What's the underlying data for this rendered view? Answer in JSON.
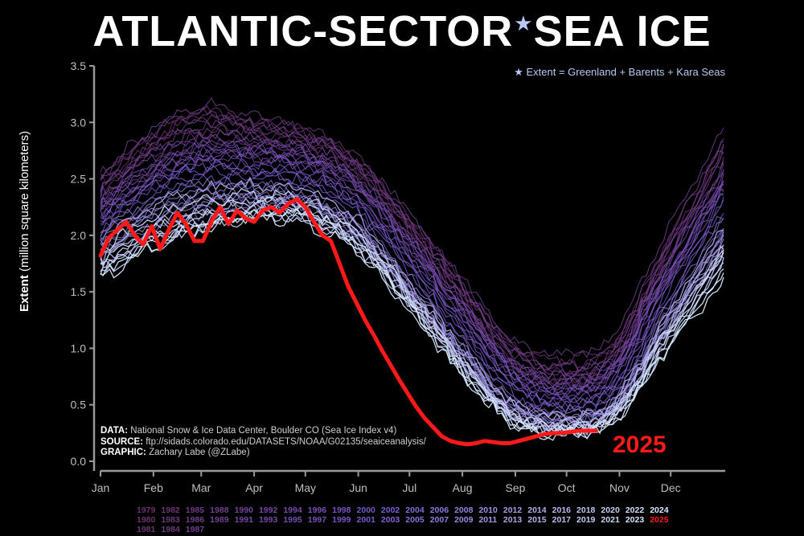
{
  "header": {
    "title_part1": "ATLANTIC-SECTOR",
    "title_star": "★",
    "title_part2": "SEA ICE",
    "subtitle": "★ Extent = Greenland + Barents + Kara Seas"
  },
  "source": {
    "data_label": "DATA:",
    "data_text": "National Snow & Ice Data Center, Boulder CO (Sea Ice Index v4)",
    "source_label": "SOURCE:",
    "source_text": "ftp://sidads.colorado.edu/DATASETS/NOAA/G02135/seaiceanalysis/",
    "graphic_label": "GRAPHIC:",
    "graphic_text": "Zachary Labe (@ZLabe)"
  },
  "colors": {
    "background": "#000000",
    "highlight": "#ff1a1a",
    "early_years": "#6b2f6b",
    "mid_years": "#7a5ad0",
    "late_years": "#d8ecff"
  },
  "chart_data": {
    "type": "line",
    "title": "ATLANTIC-SECTOR SEA ICE",
    "xlabel": "",
    "ylabel_bold": "Extent",
    "ylabel_rest": "(million square kilometers)",
    "ylim": [
      0,
      3.5
    ],
    "yticks": [
      "0.0",
      "0.5",
      "1.0",
      "1.5",
      "2.0",
      "2.5",
      "3.0",
      "3.5"
    ],
    "ytick_values": [
      0,
      0.5,
      1,
      1.5,
      2,
      2.5,
      3,
      3.5
    ],
    "xlim": [
      0,
      365
    ],
    "xticks": [
      "Jan",
      "Feb",
      "Mar",
      "Apr",
      "May",
      "Jun",
      "Jul",
      "Aug",
      "Sep",
      "Oct",
      "Nov",
      "Dec"
    ],
    "xtick_days": [
      0,
      31,
      59,
      90,
      120,
      151,
      181,
      212,
      243,
      273,
      304,
      334
    ],
    "grid": false,
    "highlight_year": "2025",
    "highlight_series": {
      "name": "2025",
      "days": [
        0,
        5,
        10,
        15,
        20,
        25,
        30,
        35,
        40,
        45,
        50,
        55,
        60,
        65,
        70,
        75,
        80,
        85,
        90,
        95,
        100,
        105,
        110,
        115,
        120,
        125,
        130,
        135,
        140,
        145,
        150,
        155,
        160,
        165,
        170,
        175,
        180,
        185,
        190,
        195,
        200,
        205,
        210,
        215,
        220,
        225,
        230,
        235,
        240,
        245,
        250,
        255,
        260,
        265,
        270,
        275,
        280,
        285,
        290
      ],
      "values": [
        1.82,
        1.98,
        2.05,
        2.12,
        2.0,
        1.92,
        2.08,
        1.88,
        2.05,
        2.2,
        2.1,
        1.95,
        1.95,
        2.12,
        2.25,
        2.1,
        2.22,
        2.15,
        2.12,
        2.22,
        2.25,
        2.2,
        2.28,
        2.32,
        2.25,
        2.12,
        2.0,
        1.95,
        1.75,
        1.55,
        1.4,
        1.25,
        1.12,
        0.98,
        0.85,
        0.72,
        0.6,
        0.48,
        0.38,
        0.3,
        0.22,
        0.18,
        0.16,
        0.15,
        0.16,
        0.18,
        0.17,
        0.16,
        0.16,
        0.18,
        0.2,
        0.22,
        0.24,
        0.25,
        0.25,
        0.26,
        0.27,
        0.27,
        0.27
      ]
    },
    "series": [
      {
        "name": "1979",
        "values": [
          2.45,
          2.7,
          2.9,
          2.95,
          2.85,
          2.6,
          2.1,
          1.5,
          0.95,
          0.72,
          0.9,
          1.75,
          2.6
        ]
      },
      {
        "name": "1980",
        "values": [
          2.4,
          2.85,
          3.05,
          3.0,
          2.9,
          2.65,
          2.15,
          1.6,
          1.05,
          0.85,
          1.0,
          1.9,
          2.75
        ]
      },
      {
        "name": "1981",
        "values": [
          2.55,
          2.8,
          3.1,
          2.9,
          2.8,
          2.55,
          2.05,
          1.45,
          0.85,
          0.7,
          0.85,
          1.8,
          2.7
        ]
      },
      {
        "name": "1982",
        "values": [
          2.35,
          2.8,
          2.95,
          2.9,
          2.85,
          2.6,
          2.1,
          1.55,
          1.0,
          0.8,
          1.0,
          1.85,
          2.8
        ]
      },
      {
        "name": "1983",
        "values": [
          2.5,
          2.9,
          3.1,
          3.0,
          2.95,
          2.7,
          2.2,
          1.65,
          1.05,
          0.9,
          1.05,
          1.8,
          2.85
        ]
      },
      {
        "name": "1984",
        "values": [
          2.3,
          2.6,
          2.85,
          2.8,
          2.75,
          2.5,
          2.0,
          1.45,
          0.9,
          0.75,
          0.9,
          1.7,
          2.6
        ]
      },
      {
        "name": "1985",
        "values": [
          2.4,
          2.8,
          3.0,
          2.95,
          2.9,
          2.65,
          2.15,
          1.6,
          1.0,
          0.8,
          0.95,
          1.75,
          2.7
        ]
      },
      {
        "name": "1986",
        "values": [
          2.3,
          2.75,
          2.95,
          2.85,
          2.8,
          2.6,
          2.1,
          1.55,
          1.0,
          0.85,
          1.0,
          1.9,
          2.85
        ]
      },
      {
        "name": "1987",
        "values": [
          2.45,
          2.9,
          3.15,
          3.05,
          2.9,
          2.65,
          2.2,
          1.65,
          1.1,
          0.95,
          1.1,
          2.0,
          2.95
        ]
      },
      {
        "name": "1988",
        "values": [
          2.5,
          2.95,
          3.05,
          2.95,
          2.85,
          2.6,
          2.1,
          1.55,
          1.0,
          0.8,
          0.95,
          1.8,
          2.75
        ]
      },
      {
        "name": "1989",
        "values": [
          2.3,
          2.6,
          2.8,
          2.8,
          2.7,
          2.45,
          1.95,
          1.4,
          0.85,
          0.7,
          0.85,
          1.6,
          2.5
        ]
      },
      {
        "name": "1990",
        "values": [
          2.2,
          2.55,
          2.75,
          2.75,
          2.65,
          2.45,
          1.95,
          1.4,
          0.85,
          0.65,
          0.8,
          1.6,
          2.45
        ]
      },
      {
        "name": "1991",
        "values": [
          2.4,
          2.75,
          2.9,
          2.85,
          2.75,
          2.5,
          2.0,
          1.45,
          0.9,
          0.72,
          0.85,
          1.7,
          2.55
        ]
      },
      {
        "name": "1992",
        "values": [
          2.2,
          2.5,
          2.7,
          2.75,
          2.7,
          2.45,
          1.95,
          1.4,
          0.85,
          0.68,
          0.85,
          1.65,
          2.5
        ]
      },
      {
        "name": "1993",
        "values": [
          2.35,
          2.7,
          2.85,
          2.85,
          2.75,
          2.5,
          2.0,
          1.45,
          0.9,
          0.75,
          0.9,
          1.7,
          2.6
        ]
      },
      {
        "name": "1994",
        "values": [
          2.25,
          2.6,
          2.75,
          2.7,
          2.65,
          2.4,
          1.9,
          1.35,
          0.8,
          0.65,
          0.8,
          1.6,
          2.45
        ]
      },
      {
        "name": "1995",
        "values": [
          2.3,
          2.55,
          2.7,
          2.7,
          2.6,
          2.35,
          1.85,
          1.3,
          0.75,
          0.6,
          0.75,
          1.55,
          2.4
        ]
      },
      {
        "name": "1996",
        "values": [
          2.1,
          2.45,
          2.65,
          2.65,
          2.6,
          2.35,
          1.85,
          1.3,
          0.78,
          0.62,
          0.8,
          1.6,
          2.5
        ]
      },
      {
        "name": "1997",
        "values": [
          2.2,
          2.5,
          2.7,
          2.7,
          2.65,
          2.4,
          1.9,
          1.35,
          0.8,
          0.6,
          0.75,
          1.5,
          2.35
        ]
      },
      {
        "name": "1998",
        "values": [
          2.3,
          2.6,
          2.8,
          2.75,
          2.7,
          2.45,
          1.95,
          1.4,
          0.82,
          0.65,
          0.8,
          1.6,
          2.45
        ]
      },
      {
        "name": "1999",
        "values": [
          2.15,
          2.45,
          2.6,
          2.6,
          2.55,
          2.3,
          1.8,
          1.25,
          0.72,
          0.55,
          0.7,
          1.45,
          2.3
        ]
      },
      {
        "name": "2000",
        "values": [
          2.1,
          2.4,
          2.55,
          2.55,
          2.5,
          2.25,
          1.75,
          1.2,
          0.65,
          0.5,
          0.65,
          1.45,
          2.35
        ]
      },
      {
        "name": "2001",
        "values": [
          2.2,
          2.5,
          2.65,
          2.6,
          2.55,
          2.3,
          1.8,
          1.25,
          0.7,
          0.55,
          0.7,
          1.5,
          2.4
        ]
      },
      {
        "name": "2002",
        "values": [
          2.05,
          2.35,
          2.5,
          2.5,
          2.45,
          2.2,
          1.7,
          1.15,
          0.62,
          0.48,
          0.6,
          1.35,
          2.25
        ]
      },
      {
        "name": "2003",
        "values": [
          2.15,
          2.45,
          2.6,
          2.55,
          2.5,
          2.25,
          1.75,
          1.2,
          0.68,
          0.52,
          0.65,
          1.4,
          2.2
        ]
      },
      {
        "name": "2004",
        "values": [
          2.0,
          2.3,
          2.45,
          2.45,
          2.4,
          2.15,
          1.65,
          1.1,
          0.6,
          0.45,
          0.58,
          1.3,
          2.1
        ]
      },
      {
        "name": "2005",
        "values": [
          1.9,
          2.15,
          2.3,
          2.35,
          2.3,
          2.05,
          1.55,
          1.0,
          0.52,
          0.38,
          0.5,
          1.2,
          2.0
        ]
      },
      {
        "name": "2006",
        "values": [
          1.8,
          2.05,
          2.2,
          2.25,
          2.25,
          2.0,
          1.5,
          0.95,
          0.48,
          0.35,
          0.48,
          1.15,
          1.95
        ]
      },
      {
        "name": "2007",
        "values": [
          1.95,
          2.2,
          2.35,
          2.3,
          2.25,
          2.0,
          1.5,
          0.95,
          0.48,
          0.36,
          0.48,
          1.2,
          2.0
        ]
      },
      {
        "name": "2008",
        "values": [
          2.05,
          2.3,
          2.45,
          2.45,
          2.35,
          2.1,
          1.6,
          1.05,
          0.55,
          0.42,
          0.55,
          1.3,
          2.15
        ]
      },
      {
        "name": "2009",
        "values": [
          2.0,
          2.25,
          2.4,
          2.4,
          2.35,
          2.1,
          1.6,
          1.05,
          0.55,
          0.4,
          0.52,
          1.25,
          2.05
        ]
      },
      {
        "name": "2010",
        "values": [
          1.95,
          2.2,
          2.35,
          2.35,
          2.3,
          2.05,
          1.55,
          1.0,
          0.5,
          0.38,
          0.5,
          1.2,
          2.0
        ]
      },
      {
        "name": "2011",
        "values": [
          1.9,
          2.15,
          2.3,
          2.3,
          2.25,
          2.0,
          1.5,
          0.95,
          0.46,
          0.33,
          0.45,
          1.15,
          1.95
        ]
      },
      {
        "name": "2012",
        "values": [
          1.85,
          2.1,
          2.3,
          2.35,
          2.3,
          2.05,
          1.5,
          0.92,
          0.42,
          0.3,
          0.42,
          1.1,
          1.9
        ]
      },
      {
        "name": "2013",
        "values": [
          1.95,
          2.25,
          2.4,
          2.45,
          2.4,
          2.15,
          1.6,
          1.05,
          0.52,
          0.4,
          0.52,
          1.25,
          2.05
        ]
      },
      {
        "name": "2014",
        "values": [
          1.85,
          2.1,
          2.25,
          2.3,
          2.3,
          2.05,
          1.55,
          1.0,
          0.5,
          0.38,
          0.5,
          1.2,
          1.95
        ]
      },
      {
        "name": "2015",
        "values": [
          1.8,
          2.05,
          2.2,
          2.25,
          2.2,
          1.95,
          1.45,
          0.9,
          0.42,
          0.32,
          0.45,
          1.1,
          1.85
        ]
      },
      {
        "name": "2016",
        "values": [
          1.7,
          1.95,
          2.1,
          2.2,
          2.15,
          1.9,
          1.4,
          0.85,
          0.4,
          0.3,
          0.42,
          1.1,
          1.8
        ]
      },
      {
        "name": "2017",
        "values": [
          1.75,
          2.0,
          2.15,
          2.25,
          2.2,
          1.95,
          1.45,
          0.9,
          0.42,
          0.32,
          0.45,
          1.15,
          1.9
        ]
      },
      {
        "name": "2018",
        "values": [
          1.65,
          1.9,
          2.05,
          2.15,
          2.15,
          1.9,
          1.4,
          0.85,
          0.4,
          0.28,
          0.4,
          1.05,
          1.8
        ]
      },
      {
        "name": "2019",
        "values": [
          1.75,
          2.0,
          2.15,
          2.2,
          2.2,
          1.95,
          1.45,
          0.88,
          0.4,
          0.28,
          0.38,
          1.0,
          1.75
        ]
      },
      {
        "name": "2020",
        "values": [
          1.85,
          2.15,
          2.3,
          2.35,
          2.3,
          2.05,
          1.5,
          0.92,
          0.42,
          0.3,
          0.4,
          1.05,
          1.85
        ]
      },
      {
        "name": "2021",
        "values": [
          1.8,
          2.05,
          2.2,
          2.3,
          2.25,
          2.0,
          1.5,
          0.9,
          0.42,
          0.3,
          0.42,
          1.1,
          1.85
        ]
      },
      {
        "name": "2022",
        "values": [
          1.7,
          1.95,
          2.1,
          2.15,
          2.15,
          1.9,
          1.4,
          0.82,
          0.36,
          0.26,
          0.38,
          1.0,
          1.7
        ]
      },
      {
        "name": "2023",
        "values": [
          1.65,
          1.9,
          2.05,
          2.15,
          2.1,
          1.85,
          1.35,
          0.8,
          0.35,
          0.25,
          0.35,
          0.95,
          1.65
        ]
      },
      {
        "name": "2024",
        "values": [
          1.6,
          1.9,
          2.1,
          2.2,
          2.2,
          1.95,
          1.4,
          0.82,
          0.35,
          0.25,
          0.36,
          0.95,
          1.6
        ]
      }
    ],
    "legend": {
      "row1": [
        "1979",
        "1982",
        "1985",
        "1988",
        "1990",
        "1992",
        "1994",
        "1996",
        "1998",
        "2000",
        "2002",
        "2004",
        "2006",
        "2008",
        "2010",
        "2012",
        "2014",
        "2016",
        "2018",
        "2020",
        "2022",
        "2024"
      ],
      "row2": [
        "1980",
        "1983",
        "1986",
        "1989",
        "1991",
        "1993",
        "1995",
        "1997",
        "1999",
        "2001",
        "2003",
        "2005",
        "2007",
        "2009",
        "2011",
        "2013",
        "2015",
        "2017",
        "2019",
        "2021",
        "2023",
        "2025"
      ],
      "row3": [
        "1981",
        "1984",
        "1987"
      ]
    }
  }
}
